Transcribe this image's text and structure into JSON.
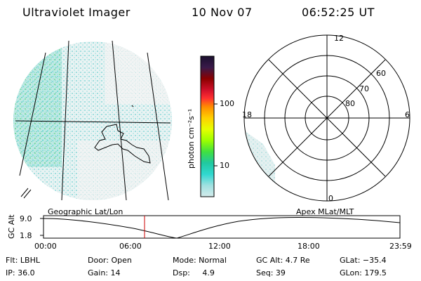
{
  "header": {
    "title": "Ultraviolet Imager",
    "date": "10 Nov 07",
    "time": "06:52:25 UT"
  },
  "colorbar": {
    "unit_label": "photon cm⁻²s⁻¹",
    "ticks": [
      "100",
      "10"
    ],
    "colors_top_to_bottom": [
      "#1a0f2e",
      "#3a1a4a",
      "#8b0000",
      "#d0102a",
      "#ff3030",
      "#ff8c00",
      "#ffd000",
      "#e6ff00",
      "#9cff00",
      "#40e040",
      "#20c8a0",
      "#30d8d0",
      "#a0e0e0",
      "#d4ecec"
    ]
  },
  "left_panel": {
    "label": "Geographic Lat/Lon"
  },
  "right_panel": {
    "label": "Apex  MLat/MLT",
    "mlt_labels": {
      "top": "12",
      "left": "18",
      "right": "6",
      "bottom": "0"
    },
    "lat_rings": [
      "60",
      "70",
      "80"
    ]
  },
  "timeline": {
    "ylabel": "GC Alt",
    "y_ticks": [
      "9.0",
      "1.8"
    ],
    "x_ticks": [
      "00:00",
      "06:00",
      "12:00",
      "18:00",
      "23:59"
    ],
    "cursor_time": "06:52:25",
    "cursor_color": "#cc0000"
  },
  "info": {
    "row1": {
      "flt": "Flt: LBHL",
      "door": "Door: Open",
      "mode": "Mode: Normal",
      "gcalt": "GC Alt: 4.7 Re",
      "glat": "GLat: −35.4"
    },
    "row2": {
      "ip": "IP: 36.0",
      "gain": "Gain: 14",
      "dsp": "Dsp:     4.9",
      "seq": "Seq: 39",
      "glon": "GLon: 179.5"
    }
  }
}
